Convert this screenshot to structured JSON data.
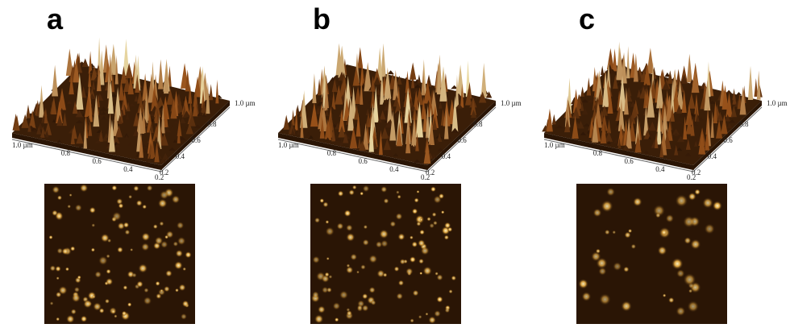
{
  "panels": [
    {
      "label": "a",
      "front_axis": [
        "1.0 µm",
        "0.8",
        "0.6",
        "0.4",
        "0.2"
      ],
      "side_axis": [
        "1.0 µm",
        "0.8",
        "0.6",
        "0.4",
        "0.2"
      ]
    },
    {
      "label": "b",
      "front_axis": [
        "1.0 µm",
        "0.8",
        "0.6",
        "0.4",
        "0.2"
      ],
      "side_axis": [
        "1.0 µm",
        "0.8",
        "0.6",
        "0.4",
        "0.2"
      ]
    },
    {
      "label": "c",
      "front_axis": [
        "1.0 µm",
        "0.8",
        "0.6",
        "0.4",
        "0.2"
      ],
      "side_axis": [
        "1.0 µm",
        "0.8",
        "0.6",
        "0.4",
        "0.2"
      ]
    }
  ]
}
